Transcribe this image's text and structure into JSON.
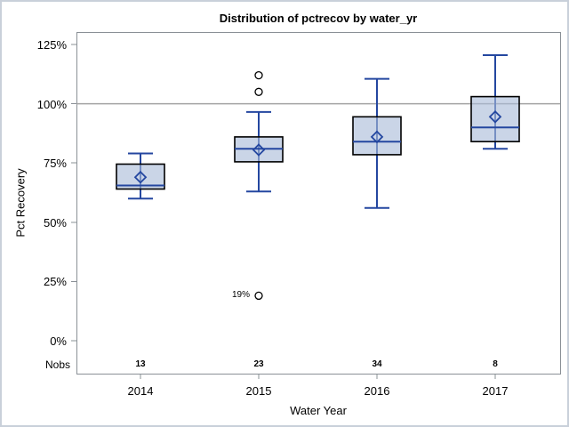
{
  "chart_data": {
    "type": "boxplot",
    "title": "Distribution of pctrecov by water_yr",
    "xlabel": "Water Year",
    "ylabel": "Pct Recovery",
    "nobs_label": "Nobs",
    "categories": [
      "2014",
      "2015",
      "2016",
      "2017"
    ],
    "ylim": [
      0,
      133
    ],
    "ytick_values": [
      0,
      25,
      50,
      75,
      100,
      125
    ],
    "ytick_labels": [
      "0%",
      "25%",
      "50%",
      "75%",
      "100%",
      "125%"
    ],
    "reference_line": 100,
    "grid": false,
    "legend": "none",
    "series": [
      {
        "category": "2014",
        "nobs": "13",
        "whisker_low": 60,
        "q1": 64,
        "median": 65.5,
        "mean": 69,
        "q3": 74.5,
        "whisker_high": 79,
        "outliers": []
      },
      {
        "category": "2015",
        "nobs": "23",
        "whisker_low": 63,
        "q1": 75.5,
        "median": 81,
        "mean": 80.5,
        "q3": 86,
        "whisker_high": 96.5,
        "outliers": [
          {
            "value": 112,
            "label": ""
          },
          {
            "value": 105,
            "label": ""
          },
          {
            "value": 19,
            "label": "19%"
          }
        ]
      },
      {
        "category": "2016",
        "nobs": "34",
        "whisker_low": 56,
        "q1": 78.5,
        "median": 84,
        "mean": 86,
        "q3": 94.5,
        "whisker_high": 110.5,
        "outliers": []
      },
      {
        "category": "2017",
        "nobs": "8",
        "whisker_low": 81,
        "q1": 84,
        "median": 90,
        "mean": 94.5,
        "q3": 103,
        "whisker_high": 120.5,
        "outliers": []
      }
    ],
    "colors": {
      "box_fill": "#a9bcd8",
      "box_fill_opacity": 0.62,
      "box_edge": "#000000",
      "whisker": "#2447a0",
      "median": "#2447a0",
      "mean_marker": "#2447a0",
      "outlier_stroke": "#000000",
      "outlier_fill": "#ffffff",
      "axis_frame": "#8a9096",
      "reference_line": "#a3a3a3",
      "text": "#000000",
      "page_border": "#c9d0da"
    }
  }
}
